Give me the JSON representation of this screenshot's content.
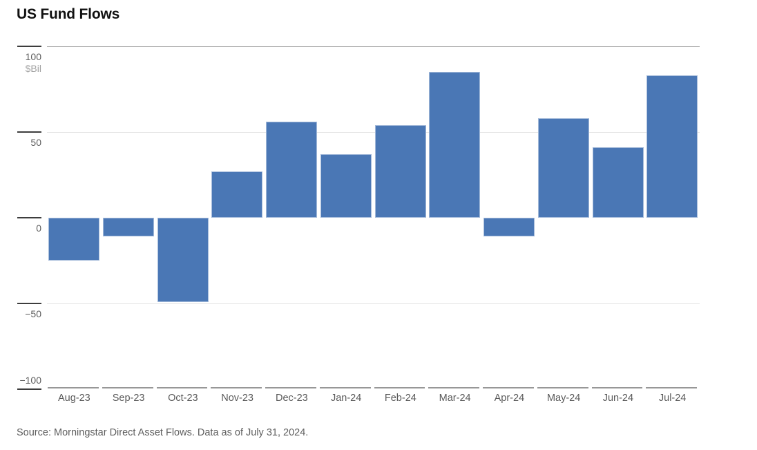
{
  "page": {
    "title": "US Fund Flows",
    "source": "Source: Morningstar Direct Asset Flows. Data as of July 31, 2024."
  },
  "chart_data": {
    "type": "bar",
    "title": "US Fund Flows",
    "unit_label": "$Bil",
    "categories": [
      "Aug-23",
      "Sep-23",
      "Oct-23",
      "Nov-23",
      "Dec-23",
      "Jan-24",
      "Feb-24",
      "Mar-24",
      "Apr-24",
      "May-24",
      "Jun-24",
      "Jul-24"
    ],
    "values": [
      -25,
      -11,
      -49,
      27,
      56,
      37,
      54,
      85,
      -11,
      58,
      41,
      83
    ],
    "ylabel": "$Bil",
    "ylim": [
      -100,
      100
    ],
    "yticks": [
      100,
      50,
      0,
      -50,
      -100
    ],
    "grid": "horizontal-at-50-and-minus-50",
    "legend": "none",
    "bar_color": "#4a77b5",
    "source": "Source: Morningstar Direct Asset Flows. Data as of July 31, 2024."
  }
}
